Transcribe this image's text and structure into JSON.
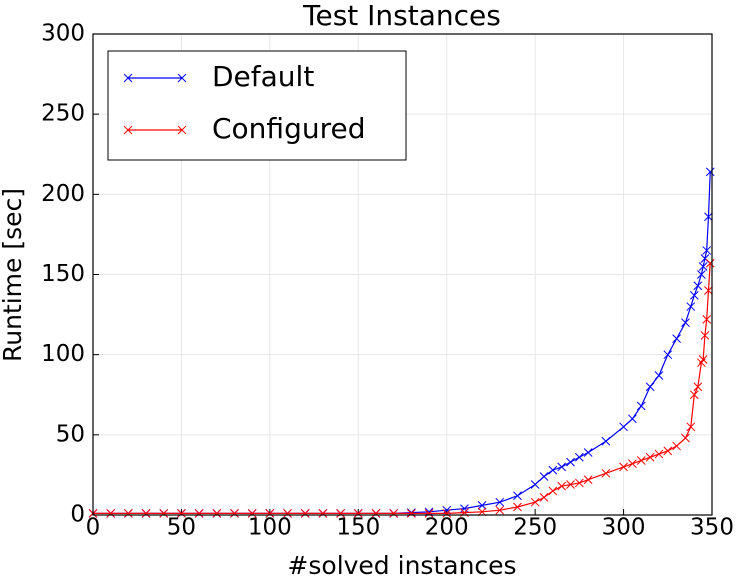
{
  "chart_data": {
    "type": "line",
    "title": "Test Instances",
    "x_label": "#solved instances",
    "y_label": "Runtime [sec]",
    "x": [
      0,
      10,
      20,
      30,
      40,
      50,
      60,
      70,
      80,
      90,
      100,
      110,
      120,
      130,
      140,
      150,
      160,
      170,
      180,
      190,
      200,
      210,
      220,
      230,
      240,
      250,
      255,
      260,
      265,
      270,
      275,
      280,
      290,
      300,
      305,
      310,
      315,
      320,
      325,
      330,
      335,
      338,
      340,
      342,
      344,
      345,
      346,
      347,
      348,
      349
    ],
    "series": [
      {
        "name": "Default",
        "color": "#0000ff",
        "values": [
          1,
          1,
          1,
          1,
          1,
          1,
          1,
          1,
          1,
          1,
          1,
          1,
          1,
          1,
          1,
          1,
          1,
          1,
          1.5,
          2,
          3,
          4,
          6,
          8,
          12,
          19,
          24,
          28,
          30,
          33,
          36,
          39,
          46,
          55,
          60,
          68,
          80,
          87,
          100,
          110,
          120,
          130,
          137,
          143,
          150,
          155,
          160,
          165,
          186,
          214
        ]
      },
      {
        "name": "Configured",
        "color": "#ff0000",
        "values": [
          1,
          1,
          1,
          1,
          1,
          1,
          1,
          1,
          1,
          1,
          1,
          1,
          1,
          1,
          1,
          1,
          1,
          1,
          1,
          1,
          1,
          1.5,
          2,
          3,
          5,
          8,
          11,
          15,
          18,
          19,
          20,
          22,
          26,
          30,
          32,
          34,
          36,
          38,
          40,
          43,
          48,
          55,
          75,
          80,
          95,
          97,
          112,
          122,
          140,
          157
        ]
      }
    ],
    "xlim": [
      0,
      350
    ],
    "ylim": [
      0,
      300
    ],
    "xticks": [
      0,
      50,
      100,
      150,
      200,
      250,
      300,
      350
    ],
    "yticks": [
      0,
      50,
      100,
      150,
      200,
      250,
      300
    ],
    "grid": true,
    "legend": "upper left"
  }
}
